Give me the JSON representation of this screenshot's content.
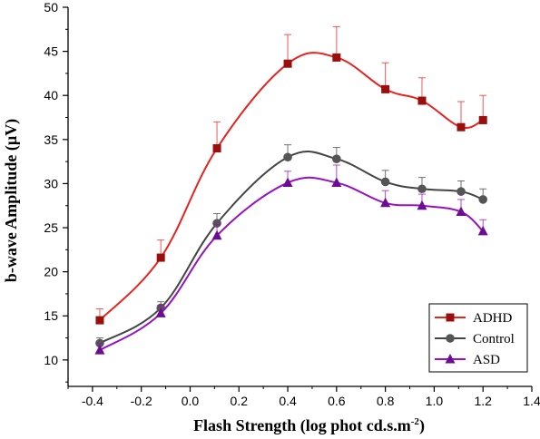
{
  "chart_data": {
    "type": "line",
    "title": "",
    "xlabel": "Flash Strength (log phot cd.s.m",
    "xlabel_superscript": "-2",
    "xlabel_suffix": ")",
    "ylabel": "b-wave Amplitude (µV)",
    "xlim": [
      -0.5,
      1.4
    ],
    "ylim": [
      7,
      50
    ],
    "xticks": [
      -0.4,
      -0.2,
      0.0,
      0.2,
      0.4,
      0.6,
      0.8,
      1.0,
      1.2,
      1.4
    ],
    "xtick_labels": [
      "-0.4",
      "-0.2",
      "0.0",
      "0.2",
      "0.4",
      "0.6",
      "0.8",
      "1.0",
      "1.2",
      "1.4"
    ],
    "yticks": [
      10,
      15,
      20,
      25,
      30,
      35,
      40,
      45,
      50
    ],
    "ytick_labels": [
      "10",
      "15",
      "20",
      "25",
      "30",
      "35",
      "40",
      "45",
      "50"
    ],
    "x": [
      -0.37,
      -0.12,
      0.11,
      0.4,
      0.6,
      0.8,
      0.95,
      1.11,
      1.2
    ],
    "grid": false,
    "legend_position": "bottom-right",
    "series": [
      {
        "name": "ADHD",
        "color": "#e8231f",
        "marker_color": "#9b0e0e",
        "marker": "square",
        "values": [
          14.5,
          21.6,
          34.0,
          43.6,
          44.3,
          40.7,
          39.4,
          36.4,
          37.2
        ],
        "error": [
          1.3,
          2.0,
          3.0,
          3.3,
          3.5,
          3.0,
          2.6,
          2.9,
          2.8
        ]
      },
      {
        "name": "Control",
        "color": "#444444",
        "marker_color": "#555555",
        "marker": "circle",
        "values": [
          11.9,
          15.9,
          25.5,
          33.0,
          32.8,
          30.2,
          29.4,
          29.1,
          28.2
        ],
        "error": [
          0.6,
          0.7,
          1.1,
          1.4,
          1.3,
          1.3,
          1.3,
          1.2,
          1.2
        ]
      },
      {
        "name": "ASD",
        "color": "#9810c2",
        "marker_color": "#6a0d91",
        "marker": "triangle",
        "values": [
          11.1,
          15.3,
          24.1,
          30.1,
          30.1,
          27.8,
          27.5,
          26.8,
          24.6
        ],
        "error": [
          0.8,
          0.9,
          1.3,
          1.3,
          2.0,
          1.4,
          1.3,
          1.4,
          1.3
        ]
      }
    ]
  }
}
